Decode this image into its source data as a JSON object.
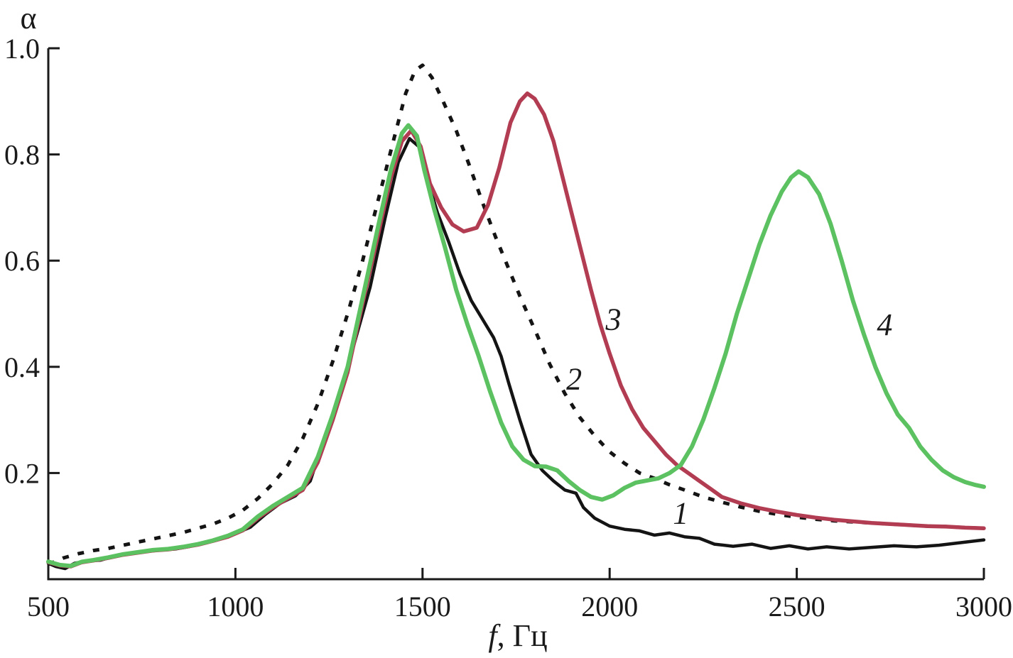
{
  "chart_data": {
    "type": "line",
    "title": "",
    "xlabel": "f, Гц",
    "xlabel_parts": {
      "var": "f",
      "unit": ", Гц"
    },
    "ylabel": "α",
    "xlim": [
      500,
      3000
    ],
    "ylim": [
      0,
      1.0
    ],
    "x_ticks": [
      500,
      1000,
      1500,
      2000,
      2500,
      3000
    ],
    "y_ticks": [
      0.2,
      0.4,
      0.6,
      0.8,
      1.0
    ],
    "grid": false,
    "legend_position": "inline-numeric-labels",
    "axis_color": "#1a1a1a",
    "series": [
      {
        "name": "1",
        "color": "#141414",
        "style": "solid",
        "stroke_width": 4.5,
        "label_at": {
          "f": 2190,
          "alpha": 0.125
        },
        "points": [
          [
            500,
            0.03
          ],
          [
            520,
            0.024
          ],
          [
            545,
            0.02
          ],
          [
            570,
            0.03
          ],
          [
            600,
            0.034
          ],
          [
            640,
            0.036
          ],
          [
            680,
            0.044
          ],
          [
            720,
            0.048
          ],
          [
            760,
            0.052
          ],
          [
            800,
            0.055
          ],
          [
            840,
            0.057
          ],
          [
            880,
            0.062
          ],
          [
            920,
            0.068
          ],
          [
            960,
            0.076
          ],
          [
            1000,
            0.086
          ],
          [
            1040,
            0.098
          ],
          [
            1080,
            0.122
          ],
          [
            1120,
            0.143
          ],
          [
            1160,
            0.157
          ],
          [
            1200,
            0.185
          ],
          [
            1240,
            0.27
          ],
          [
            1280,
            0.35
          ],
          [
            1320,
            0.45
          ],
          [
            1360,
            0.55
          ],
          [
            1400,
            0.68
          ],
          [
            1435,
            0.785
          ],
          [
            1465,
            0.83
          ],
          [
            1490,
            0.815
          ],
          [
            1510,
            0.76
          ],
          [
            1540,
            0.69
          ],
          [
            1570,
            0.635
          ],
          [
            1600,
            0.575
          ],
          [
            1630,
            0.525
          ],
          [
            1660,
            0.49
          ],
          [
            1690,
            0.455
          ],
          [
            1710,
            0.42
          ],
          [
            1730,
            0.37
          ],
          [
            1760,
            0.3
          ],
          [
            1790,
            0.235
          ],
          [
            1820,
            0.205
          ],
          [
            1850,
            0.185
          ],
          [
            1880,
            0.168
          ],
          [
            1910,
            0.162
          ],
          [
            1930,
            0.135
          ],
          [
            1960,
            0.115
          ],
          [
            2000,
            0.1
          ],
          [
            2040,
            0.094
          ],
          [
            2080,
            0.091
          ],
          [
            2120,
            0.083
          ],
          [
            2160,
            0.087
          ],
          [
            2200,
            0.08
          ],
          [
            2240,
            0.077
          ],
          [
            2280,
            0.066
          ],
          [
            2330,
            0.062
          ],
          [
            2380,
            0.066
          ],
          [
            2430,
            0.058
          ],
          [
            2480,
            0.063
          ],
          [
            2530,
            0.057
          ],
          [
            2580,
            0.061
          ],
          [
            2640,
            0.057
          ],
          [
            2700,
            0.06
          ],
          [
            2760,
            0.063
          ],
          [
            2820,
            0.061
          ],
          [
            2880,
            0.064
          ],
          [
            2940,
            0.069
          ],
          [
            3000,
            0.074
          ]
        ]
      },
      {
        "name": "2",
        "color": "#141414",
        "style": "dashed",
        "stroke_width": 5,
        "label_at": {
          "f": 1905,
          "alpha": 0.378
        },
        "points": [
          [
            500,
            0.028
          ],
          [
            540,
            0.04
          ],
          [
            580,
            0.048
          ],
          [
            620,
            0.054
          ],
          [
            660,
            0.058
          ],
          [
            700,
            0.064
          ],
          [
            740,
            0.07
          ],
          [
            780,
            0.076
          ],
          [
            820,
            0.082
          ],
          [
            860,
            0.088
          ],
          [
            900,
            0.096
          ],
          [
            940,
            0.104
          ],
          [
            980,
            0.115
          ],
          [
            1020,
            0.13
          ],
          [
            1060,
            0.152
          ],
          [
            1100,
            0.18
          ],
          [
            1140,
            0.215
          ],
          [
            1180,
            0.265
          ],
          [
            1220,
            0.33
          ],
          [
            1260,
            0.41
          ],
          [
            1300,
            0.5
          ],
          [
            1340,
            0.6
          ],
          [
            1380,
            0.71
          ],
          [
            1420,
            0.82
          ],
          [
            1455,
            0.915
          ],
          [
            1480,
            0.958
          ],
          [
            1500,
            0.968
          ],
          [
            1525,
            0.945
          ],
          [
            1555,
            0.9
          ],
          [
            1590,
            0.845
          ],
          [
            1625,
            0.78
          ],
          [
            1660,
            0.71
          ],
          [
            1695,
            0.645
          ],
          [
            1730,
            0.585
          ],
          [
            1765,
            0.525
          ],
          [
            1800,
            0.47
          ],
          [
            1840,
            0.405
          ],
          [
            1880,
            0.35
          ],
          [
            1920,
            0.305
          ],
          [
            1960,
            0.27
          ],
          [
            2000,
            0.24
          ],
          [
            2040,
            0.218
          ],
          [
            2080,
            0.2
          ],
          [
            2120,
            0.19
          ],
          [
            2160,
            0.178
          ],
          [
            2200,
            0.168
          ],
          [
            2250,
            0.155
          ],
          [
            2300,
            0.145
          ],
          [
            2350,
            0.136
          ],
          [
            2400,
            0.128
          ],
          [
            2450,
            0.122
          ],
          [
            2500,
            0.117
          ],
          [
            2550,
            0.113
          ],
          [
            2600,
            0.11
          ],
          [
            2650,
            0.108
          ],
          [
            2700,
            0.106
          ],
          [
            2750,
            0.104
          ],
          [
            2800,
            0.102
          ],
          [
            2850,
            0.1
          ],
          [
            2900,
            0.099
          ],
          [
            2950,
            0.097
          ],
          [
            3000,
            0.096
          ]
        ]
      },
      {
        "name": "3",
        "color": "#b23c52",
        "style": "solid",
        "stroke_width": 5.5,
        "label_at": {
          "f": 2010,
          "alpha": 0.49
        },
        "points": [
          [
            500,
            0.032
          ],
          [
            530,
            0.026
          ],
          [
            560,
            0.024
          ],
          [
            590,
            0.032
          ],
          [
            620,
            0.035
          ],
          [
            660,
            0.04
          ],
          [
            700,
            0.046
          ],
          [
            740,
            0.05
          ],
          [
            780,
            0.054
          ],
          [
            820,
            0.056
          ],
          [
            860,
            0.06
          ],
          [
            900,
            0.065
          ],
          [
            940,
            0.072
          ],
          [
            980,
            0.08
          ],
          [
            1020,
            0.092
          ],
          [
            1060,
            0.115
          ],
          [
            1100,
            0.135
          ],
          [
            1140,
            0.152
          ],
          [
            1180,
            0.168
          ],
          [
            1220,
            0.22
          ],
          [
            1260,
            0.3
          ],
          [
            1300,
            0.39
          ],
          [
            1340,
            0.52
          ],
          [
            1380,
            0.645
          ],
          [
            1415,
            0.755
          ],
          [
            1445,
            0.825
          ],
          [
            1470,
            0.845
          ],
          [
            1495,
            0.815
          ],
          [
            1520,
            0.745
          ],
          [
            1550,
            0.7
          ],
          [
            1580,
            0.668
          ],
          [
            1610,
            0.655
          ],
          [
            1645,
            0.662
          ],
          [
            1675,
            0.705
          ],
          [
            1705,
            0.775
          ],
          [
            1735,
            0.86
          ],
          [
            1760,
            0.9
          ],
          [
            1780,
            0.915
          ],
          [
            1800,
            0.905
          ],
          [
            1825,
            0.875
          ],
          [
            1850,
            0.825
          ],
          [
            1875,
            0.755
          ],
          [
            1900,
            0.685
          ],
          [
            1925,
            0.615
          ],
          [
            1950,
            0.545
          ],
          [
            1975,
            0.48
          ],
          [
            2000,
            0.425
          ],
          [
            2030,
            0.365
          ],
          [
            2060,
            0.32
          ],
          [
            2090,
            0.285
          ],
          [
            2120,
            0.26
          ],
          [
            2150,
            0.235
          ],
          [
            2180,
            0.215
          ],
          [
            2210,
            0.2
          ],
          [
            2240,
            0.185
          ],
          [
            2270,
            0.17
          ],
          [
            2300,
            0.155
          ],
          [
            2350,
            0.143
          ],
          [
            2400,
            0.134
          ],
          [
            2450,
            0.127
          ],
          [
            2500,
            0.121
          ],
          [
            2550,
            0.116
          ],
          [
            2600,
            0.112
          ],
          [
            2650,
            0.109
          ],
          [
            2700,
            0.106
          ],
          [
            2750,
            0.104
          ],
          [
            2800,
            0.102
          ],
          [
            2850,
            0.1
          ],
          [
            2900,
            0.099
          ],
          [
            2950,
            0.097
          ],
          [
            3000,
            0.096
          ]
        ]
      },
      {
        "name": "4",
        "color": "#5cc261",
        "style": "solid",
        "stroke_width": 6,
        "label_at": {
          "f": 2735,
          "alpha": 0.48
        },
        "points": [
          [
            500,
            0.033
          ],
          [
            530,
            0.027
          ],
          [
            560,
            0.025
          ],
          [
            590,
            0.033
          ],
          [
            620,
            0.036
          ],
          [
            660,
            0.041
          ],
          [
            700,
            0.047
          ],
          [
            740,
            0.051
          ],
          [
            780,
            0.055
          ],
          [
            820,
            0.057
          ],
          [
            860,
            0.061
          ],
          [
            900,
            0.066
          ],
          [
            940,
            0.073
          ],
          [
            980,
            0.082
          ],
          [
            1020,
            0.094
          ],
          [
            1060,
            0.118
          ],
          [
            1100,
            0.138
          ],
          [
            1140,
            0.155
          ],
          [
            1180,
            0.172
          ],
          [
            1220,
            0.23
          ],
          [
            1260,
            0.31
          ],
          [
            1300,
            0.4
          ],
          [
            1340,
            0.53
          ],
          [
            1380,
            0.66
          ],
          [
            1415,
            0.77
          ],
          [
            1445,
            0.84
          ],
          [
            1462,
            0.855
          ],
          [
            1485,
            0.835
          ],
          [
            1505,
            0.77
          ],
          [
            1530,
            0.7
          ],
          [
            1560,
            0.625
          ],
          [
            1590,
            0.545
          ],
          [
            1620,
            0.48
          ],
          [
            1650,
            0.42
          ],
          [
            1680,
            0.355
          ],
          [
            1710,
            0.295
          ],
          [
            1740,
            0.25
          ],
          [
            1770,
            0.225
          ],
          [
            1800,
            0.213
          ],
          [
            1830,
            0.212
          ],
          [
            1860,
            0.205
          ],
          [
            1890,
            0.185
          ],
          [
            1920,
            0.168
          ],
          [
            1950,
            0.155
          ],
          [
            1980,
            0.15
          ],
          [
            2010,
            0.158
          ],
          [
            2040,
            0.172
          ],
          [
            2070,
            0.182
          ],
          [
            2100,
            0.186
          ],
          [
            2130,
            0.19
          ],
          [
            2160,
            0.2
          ],
          [
            2190,
            0.215
          ],
          [
            2220,
            0.25
          ],
          [
            2250,
            0.3
          ],
          [
            2280,
            0.36
          ],
          [
            2310,
            0.425
          ],
          [
            2340,
            0.5
          ],
          [
            2370,
            0.565
          ],
          [
            2400,
            0.63
          ],
          [
            2430,
            0.685
          ],
          [
            2460,
            0.73
          ],
          [
            2485,
            0.757
          ],
          [
            2505,
            0.768
          ],
          [
            2530,
            0.757
          ],
          [
            2560,
            0.725
          ],
          [
            2590,
            0.67
          ],
          [
            2620,
            0.6
          ],
          [
            2650,
            0.525
          ],
          [
            2680,
            0.46
          ],
          [
            2710,
            0.4
          ],
          [
            2740,
            0.35
          ],
          [
            2770,
            0.31
          ],
          [
            2800,
            0.285
          ],
          [
            2830,
            0.25
          ],
          [
            2860,
            0.225
          ],
          [
            2890,
            0.205
          ],
          [
            2920,
            0.192
          ],
          [
            2950,
            0.183
          ],
          [
            2975,
            0.178
          ],
          [
            3000,
            0.174
          ]
        ]
      }
    ]
  }
}
